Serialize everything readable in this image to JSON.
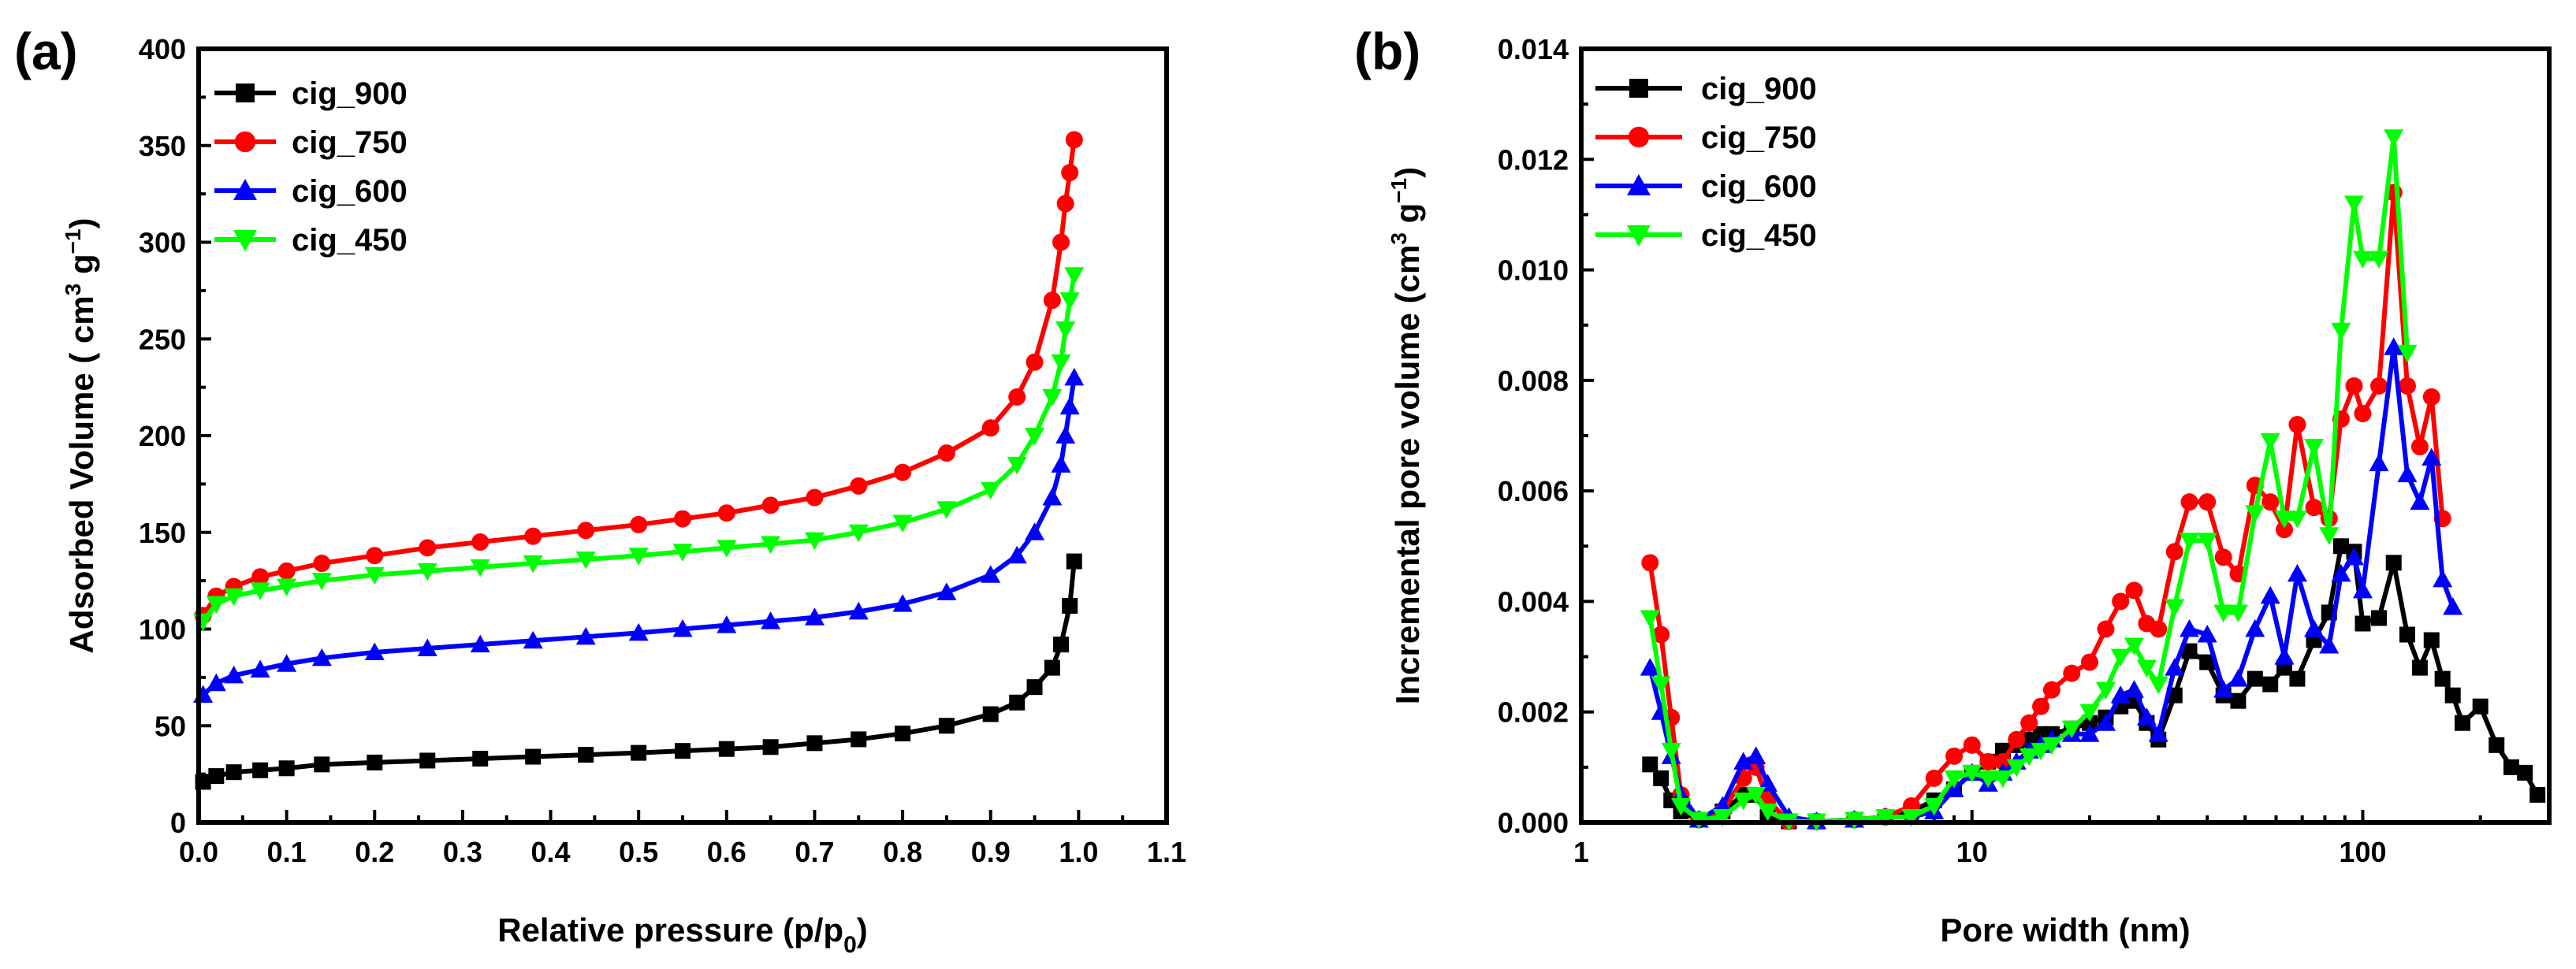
{
  "figure": {
    "title": ""
  },
  "series_styles": [
    {
      "name": "cig_900",
      "color": "#000000",
      "marker": "square"
    },
    {
      "name": "cig_750",
      "color": "#ff0000",
      "marker": "circle"
    },
    {
      "name": "cig_600",
      "color": "#0000ff",
      "marker": "triangle-up"
    },
    {
      "name": "cig_450",
      "color": "#00ff00",
      "marker": "triangle-down"
    }
  ],
  "chart_data": [
    {
      "panel_label": "(a)",
      "type": "line",
      "title": "",
      "xlabel": "Relative pressure (p/p0)",
      "xlabel_parts": [
        "Relative pressure (p/p",
        "0",
        ")"
      ],
      "ylabel": "Adsorbed Volume ( cm3 g−1)",
      "ylabel_parts": [
        "Adsorbed Volume ( cm",
        "3",
        " g",
        "−1",
        ")"
      ],
      "xlim": [
        0.0,
        1.1
      ],
      "ylim": [
        0,
        400
      ],
      "x_ticks": [
        "0.0",
        "0.1",
        "0.2",
        "0.3",
        "0.4",
        "0.5",
        "0.6",
        "0.7",
        "0.8",
        "0.9",
        "1.0",
        "1.1"
      ],
      "y_ticks": [
        "0",
        "50",
        "100",
        "150",
        "200",
        "250",
        "300",
        "350",
        "400"
      ],
      "x_scale": "linear",
      "legend": [
        "cig_900",
        "cig_750",
        "cig_600",
        "cig_450"
      ],
      "legend_position": "top-left",
      "series": [
        {
          "name": "cig_900",
          "x": [
            0.005,
            0.02,
            0.04,
            0.07,
            0.1,
            0.14,
            0.2,
            0.26,
            0.32,
            0.38,
            0.44,
            0.5,
            0.55,
            0.6,
            0.65,
            0.7,
            0.75,
            0.8,
            0.85,
            0.9,
            0.93,
            0.95,
            0.97,
            0.98,
            0.99,
            0.995
          ],
          "y": [
            21,
            24,
            26,
            27,
            28,
            30,
            31,
            32,
            33,
            34,
            35,
            36,
            37,
            38,
            39,
            41,
            43,
            46,
            50,
            56,
            62,
            70,
            80,
            92,
            112,
            135
          ]
        },
        {
          "name": "cig_750",
          "x": [
            0.005,
            0.02,
            0.04,
            0.07,
            0.1,
            0.14,
            0.2,
            0.26,
            0.32,
            0.38,
            0.44,
            0.5,
            0.55,
            0.6,
            0.65,
            0.7,
            0.75,
            0.8,
            0.85,
            0.9,
            0.93,
            0.95,
            0.97,
            0.98,
            0.985,
            0.99,
            0.995
          ],
          "y": [
            107,
            117,
            122,
            127,
            130,
            134,
            138,
            142,
            145,
            148,
            151,
            154,
            157,
            160,
            164,
            168,
            174,
            181,
            191,
            204,
            220,
            238,
            270,
            300,
            320,
            336,
            353
          ]
        },
        {
          "name": "cig_600",
          "x": [
            0.005,
            0.02,
            0.04,
            0.07,
            0.1,
            0.14,
            0.2,
            0.26,
            0.32,
            0.38,
            0.44,
            0.5,
            0.55,
            0.6,
            0.65,
            0.7,
            0.75,
            0.8,
            0.85,
            0.9,
            0.93,
            0.95,
            0.97,
            0.98,
            0.985,
            0.99,
            0.995
          ],
          "y": [
            66,
            72,
            76,
            79,
            82,
            85,
            88,
            90,
            92,
            94,
            96,
            98,
            100,
            102,
            104,
            106,
            109,
            113,
            119,
            128,
            138,
            150,
            168,
            185,
            200,
            215,
            230
          ]
        },
        {
          "name": "cig_450",
          "x": [
            0.005,
            0.02,
            0.04,
            0.07,
            0.1,
            0.14,
            0.2,
            0.26,
            0.32,
            0.38,
            0.44,
            0.5,
            0.55,
            0.6,
            0.65,
            0.7,
            0.75,
            0.8,
            0.85,
            0.9,
            0.93,
            0.95,
            0.97,
            0.98,
            0.985,
            0.99,
            0.995
          ],
          "y": [
            104,
            113,
            117,
            120,
            122,
            125,
            128,
            130,
            132,
            134,
            136,
            138,
            140,
            142,
            144,
            146,
            150,
            155,
            162,
            172,
            185,
            200,
            220,
            238,
            255,
            270,
            283
          ]
        }
      ]
    },
    {
      "panel_label": "(b)",
      "type": "line",
      "title": "",
      "xlabel": "Pore width (nm)",
      "ylabel": "Incremental pore volume (cm3 g−1)",
      "ylabel_parts": [
        "Incremental pore volume (cm",
        "3",
        " g",
        "−1",
        ")"
      ],
      "xlim": [
        1,
        300
      ],
      "ylim": [
        0,
        0.014
      ],
      "x_scale": "log",
      "x_ticks": [
        1,
        10,
        100
      ],
      "x_tick_labels": [
        "1",
        "10",
        "100"
      ],
      "y_ticks": [
        "0.000",
        "0.002",
        "0.004",
        "0.006",
        "0.008",
        "0.010",
        "0.012",
        "0.014"
      ],
      "legend": [
        "cig_900",
        "cig_750",
        "cig_600",
        "cig_450"
      ],
      "legend_position": "top-left",
      "series": [
        {
          "name": "cig_900",
          "x": [
            1.5,
            1.6,
            1.7,
            1.8,
            2.0,
            2.3,
            2.6,
            2.8,
            3.0,
            3.4,
            4,
            5,
            6,
            7,
            8,
            9,
            10,
            11,
            12,
            13,
            14,
            15,
            16,
            18,
            20,
            22,
            24,
            26,
            28,
            30,
            33,
            36,
            40,
            44,
            48,
            53,
            58,
            63,
            68,
            75,
            82,
            88,
            95,
            100,
            110,
            120,
            130,
            140,
            150,
            160,
            170,
            180,
            200,
            220,
            240,
            260,
            280
          ],
          "y": [
            0.00105,
            0.0008,
            0.0004,
            0.0002,
            5e-05,
            0.0002,
            0.0005,
            0.0005,
            0.0001,
            2e-05,
            2e-05,
            5e-05,
            0.0001,
            0.0002,
            0.0004,
            0.0006,
            0.0009,
            0.0011,
            0.0013,
            0.0014,
            0.0015,
            0.0016,
            0.0016,
            0.0017,
            0.0018,
            0.0019,
            0.0021,
            0.0022,
            0.0018,
            0.0015,
            0.0023,
            0.0031,
            0.0029,
            0.0023,
            0.0022,
            0.0026,
            0.0025,
            0.0028,
            0.0026,
            0.0033,
            0.0038,
            0.005,
            0.0049,
            0.0036,
            0.0037,
            0.0047,
            0.0034,
            0.0028,
            0.0033,
            0.0026,
            0.0023,
            0.0018,
            0.0021,
            0.0014,
            0.001,
            0.0009,
            0.0005
          ]
        },
        {
          "name": "cig_750",
          "x": [
            1.5,
            1.6,
            1.7,
            1.8,
            2.0,
            2.3,
            2.6,
            2.8,
            3.0,
            3.4,
            4,
            5,
            6,
            7,
            8,
            9,
            10,
            11,
            12,
            13,
            14,
            15,
            16,
            18,
            20,
            22,
            24,
            26,
            28,
            30,
            33,
            36,
            40,
            44,
            48,
            53,
            58,
            63,
            68,
            75,
            82,
            88,
            95,
            100,
            110,
            120,
            130,
            140,
            150,
            160
          ],
          "y": [
            0.0047,
            0.0034,
            0.0019,
            0.0005,
            5e-05,
            0.0002,
            0.0008,
            0.001,
            0.0004,
            2e-05,
            2e-05,
            5e-05,
            0.0001,
            0.0003,
            0.0008,
            0.0012,
            0.0014,
            0.0011,
            0.0011,
            0.0015,
            0.0018,
            0.0021,
            0.0024,
            0.0027,
            0.0029,
            0.0035,
            0.004,
            0.0042,
            0.0036,
            0.0035,
            0.0049,
            0.0058,
            0.0058,
            0.0048,
            0.0045,
            0.0061,
            0.0058,
            0.0053,
            0.0072,
            0.0057,
            0.0055,
            0.0073,
            0.0079,
            0.0074,
            0.0079,
            0.0114,
            0.0079,
            0.0068,
            0.0077,
            0.0055
          ]
        },
        {
          "name": "cig_600",
          "x": [
            1.5,
            1.6,
            1.7,
            1.8,
            2.0,
            2.3,
            2.6,
            2.8,
            3.0,
            3.4,
            4,
            5,
            6,
            7,
            8,
            9,
            10,
            11,
            12,
            13,
            14,
            15,
            16,
            18,
            20,
            22,
            24,
            26,
            28,
            30,
            33,
            36,
            40,
            44,
            48,
            53,
            58,
            63,
            68,
            75,
            82,
            88,
            95,
            100,
            110,
            120,
            130,
            140,
            150,
            160,
            170
          ],
          "y": [
            0.0028,
            0.002,
            0.0012,
            0.0005,
            5e-05,
            0.0003,
            0.0011,
            0.0012,
            0.0007,
            0.0001,
            2e-05,
            5e-05,
            0.0001,
            0.0001,
            0.0002,
            0.0006,
            0.0009,
            0.0007,
            0.0009,
            0.0011,
            0.0013,
            0.0014,
            0.0015,
            0.0016,
            0.0016,
            0.0018,
            0.0023,
            0.0024,
            0.0019,
            0.0016,
            0.0028,
            0.0035,
            0.0034,
            0.0024,
            0.0026,
            0.0035,
            0.0041,
            0.003,
            0.0045,
            0.0035,
            0.0032,
            0.0045,
            0.0048,
            0.0042,
            0.0065,
            0.0086,
            0.0063,
            0.0058,
            0.0066,
            0.0044,
            0.0039
          ]
        },
        {
          "name": "cig_450",
          "x": [
            1.5,
            1.6,
            1.7,
            1.8,
            2.0,
            2.3,
            2.6,
            2.8,
            3.0,
            3.4,
            4,
            5,
            6,
            7,
            8,
            9,
            10,
            11,
            12,
            13,
            14,
            15,
            16,
            18,
            20,
            22,
            24,
            26,
            28,
            30,
            33,
            36,
            40,
            44,
            48,
            53,
            58,
            63,
            68,
            75,
            82,
            88,
            95,
            100,
            110,
            120,
            130
          ],
          "y": [
            0.0037,
            0.0025,
            0.0013,
            0.0003,
            5e-05,
            0.0001,
            0.0004,
            0.0005,
            0.0002,
            2e-05,
            2e-05,
            5e-05,
            0.0001,
            0.0001,
            0.0003,
            0.0008,
            0.0009,
            0.0008,
            0.0008,
            0.001,
            0.0012,
            0.0013,
            0.0014,
            0.0017,
            0.002,
            0.0024,
            0.003,
            0.0032,
            0.0028,
            0.0025,
            0.0039,
            0.0051,
            0.0051,
            0.0038,
            0.0038,
            0.0056,
            0.0069,
            0.0055,
            0.0055,
            0.0068,
            0.0052,
            0.0089,
            0.0112,
            0.0102,
            0.0102,
            0.0124,
            0.0085
          ]
        }
      ]
    }
  ]
}
